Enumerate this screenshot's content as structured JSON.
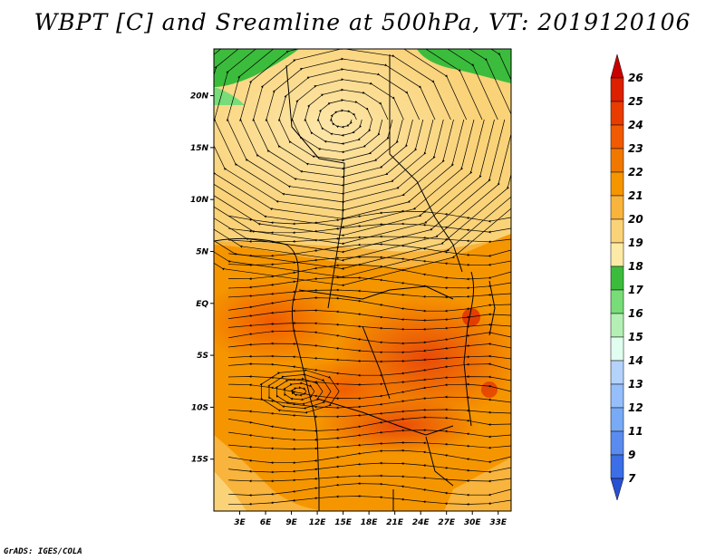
{
  "title": "WBPT [C] and Sreamline at 500hPa, VT: 2019120106",
  "credit": "GrADS: IGES/COLA",
  "map": {
    "lat_labels": [
      {
        "value": 20,
        "label": "20N"
      },
      {
        "value": 15,
        "label": "15N"
      },
      {
        "value": 10,
        "label": "10N"
      },
      {
        "value": 5,
        "label": "5N"
      },
      {
        "value": 0,
        "label": "EQ"
      },
      {
        "value": -5,
        "label": "5S"
      },
      {
        "value": -10,
        "label": "10S"
      },
      {
        "value": -15,
        "label": "15S"
      }
    ],
    "lon_labels": [
      {
        "value": 3,
        "label": "3E"
      },
      {
        "value": 6,
        "label": "6E"
      },
      {
        "value": 9,
        "label": "9E"
      },
      {
        "value": 12,
        "label": "12E"
      },
      {
        "value": 15,
        "label": "15E"
      },
      {
        "value": 18,
        "label": "18E"
      },
      {
        "value": 21,
        "label": "21E"
      },
      {
        "value": 24,
        "label": "24E"
      },
      {
        "value": 27,
        "label": "27E"
      },
      {
        "value": 30,
        "label": "30E"
      },
      {
        "value": 33,
        "label": "33E"
      }
    ],
    "lon_range": [
      0,
      34.5
    ],
    "lat_range": [
      -20,
      24.5
    ]
  },
  "colorbar": {
    "levels": [
      {
        "label": "26",
        "color": "#c80000"
      },
      {
        "label": "25",
        "color": "#dc2000"
      },
      {
        "label": "24",
        "color": "#e83c00"
      },
      {
        "label": "23",
        "color": "#f05a00"
      },
      {
        "label": "22",
        "color": "#f07800"
      },
      {
        "label": "21",
        "color": "#f59600"
      },
      {
        "label": "20",
        "color": "#f8b43c"
      },
      {
        "label": "19",
        "color": "#fad278"
      },
      {
        "label": "18",
        "color": "#fceaa6"
      },
      {
        "label": "17",
        "color": "#3cbc3c"
      },
      {
        "label": "16",
        "color": "#78dc78"
      },
      {
        "label": "15",
        "color": "#b4f0b4"
      },
      {
        "label": "14",
        "color": "#e1fff0"
      },
      {
        "label": "13",
        "color": "#b4d2fa"
      },
      {
        "label": "12",
        "color": "#96befa"
      },
      {
        "label": "11",
        "color": "#78aaf5"
      },
      {
        "label": "9",
        "color": "#5a8cf0"
      },
      {
        "label": "7",
        "color": "#3c6ee6"
      },
      {
        "label": "",
        "color": "#2850d2"
      }
    ]
  }
}
